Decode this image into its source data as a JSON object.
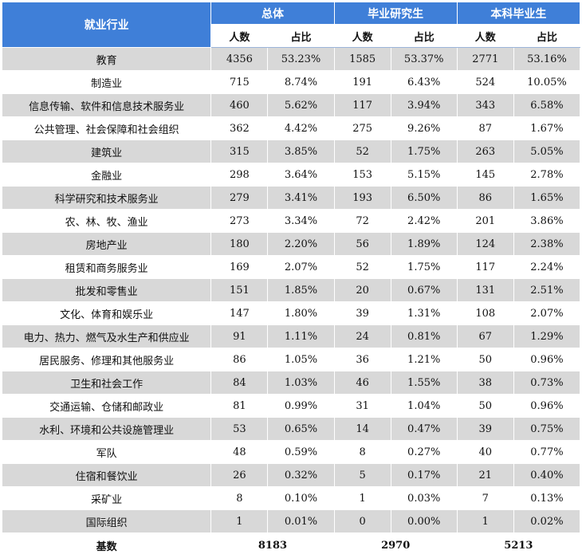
{
  "header": {
    "industry": "就业行业",
    "groups": [
      "总体",
      "毕业研究生",
      "本科毕业生"
    ],
    "count_label": "人数",
    "ratio_label": "占比"
  },
  "rows": [
    {
      "industry": "教育",
      "total_n": "4356",
      "total_p": "53.23%",
      "grad_n": "1585",
      "grad_p": "53.37%",
      "ug_n": "2771",
      "ug_p": "53.16%"
    },
    {
      "industry": "制造业",
      "total_n": "715",
      "total_p": "8.74%",
      "grad_n": "191",
      "grad_p": "6.43%",
      "ug_n": "524",
      "ug_p": "10.05%"
    },
    {
      "industry": "信息传输、软件和信息技术服务业",
      "total_n": "460",
      "total_p": "5.62%",
      "grad_n": "117",
      "grad_p": "3.94%",
      "ug_n": "343",
      "ug_p": "6.58%"
    },
    {
      "industry": "公共管理、社会保障和社会组织",
      "total_n": "362",
      "total_p": "4.42%",
      "grad_n": "275",
      "grad_p": "9.26%",
      "ug_n": "87",
      "ug_p": "1.67%"
    },
    {
      "industry": "建筑业",
      "total_n": "315",
      "total_p": "3.85%",
      "grad_n": "52",
      "grad_p": "1.75%",
      "ug_n": "263",
      "ug_p": "5.05%"
    },
    {
      "industry": "金融业",
      "total_n": "298",
      "total_p": "3.64%",
      "grad_n": "153",
      "grad_p": "5.15%",
      "ug_n": "145",
      "ug_p": "2.78%"
    },
    {
      "industry": "科学研究和技术服务业",
      "total_n": "279",
      "total_p": "3.41%",
      "grad_n": "193",
      "grad_p": "6.50%",
      "ug_n": "86",
      "ug_p": "1.65%"
    },
    {
      "industry": "农、林、牧、渔业",
      "total_n": "273",
      "total_p": "3.34%",
      "grad_n": "72",
      "grad_p": "2.42%",
      "ug_n": "201",
      "ug_p": "3.86%"
    },
    {
      "industry": "房地产业",
      "total_n": "180",
      "total_p": "2.20%",
      "grad_n": "56",
      "grad_p": "1.89%",
      "ug_n": "124",
      "ug_p": "2.38%"
    },
    {
      "industry": "租赁和商务服务业",
      "total_n": "169",
      "total_p": "2.07%",
      "grad_n": "52",
      "grad_p": "1.75%",
      "ug_n": "117",
      "ug_p": "2.24%"
    },
    {
      "industry": "批发和零售业",
      "total_n": "151",
      "total_p": "1.85%",
      "grad_n": "20",
      "grad_p": "0.67%",
      "ug_n": "131",
      "ug_p": "2.51%"
    },
    {
      "industry": "文化、体育和娱乐业",
      "total_n": "147",
      "total_p": "1.80%",
      "grad_n": "39",
      "grad_p": "1.31%",
      "ug_n": "108",
      "ug_p": "2.07%"
    },
    {
      "industry": "电力、热力、燃气及水生产和供应业",
      "total_n": "91",
      "total_p": "1.11%",
      "grad_n": "24",
      "grad_p": "0.81%",
      "ug_n": "67",
      "ug_p": "1.29%"
    },
    {
      "industry": "居民服务、修理和其他服务业",
      "total_n": "86",
      "total_p": "1.05%",
      "grad_n": "36",
      "grad_p": "1.21%",
      "ug_n": "50",
      "ug_p": "0.96%"
    },
    {
      "industry": "卫生和社会工作",
      "total_n": "84",
      "total_p": "1.03%",
      "grad_n": "46",
      "grad_p": "1.55%",
      "ug_n": "38",
      "ug_p": "0.73%"
    },
    {
      "industry": "交通运输、仓储和邮政业",
      "total_n": "81",
      "total_p": "0.99%",
      "grad_n": "31",
      "grad_p": "1.04%",
      "ug_n": "50",
      "ug_p": "0.96%"
    },
    {
      "industry": "水利、环境和公共设施管理业",
      "total_n": "53",
      "total_p": "0.65%",
      "grad_n": "14",
      "grad_p": "0.47%",
      "ug_n": "39",
      "ug_p": "0.75%"
    },
    {
      "industry": "军队",
      "total_n": "48",
      "total_p": "0.59%",
      "grad_n": "8",
      "grad_p": "0.27%",
      "ug_n": "40",
      "ug_p": "0.77%"
    },
    {
      "industry": "住宿和餐饮业",
      "total_n": "26",
      "total_p": "0.32%",
      "grad_n": "5",
      "grad_p": "0.17%",
      "ug_n": "21",
      "ug_p": "0.40%"
    },
    {
      "industry": "采矿业",
      "total_n": "8",
      "total_p": "0.10%",
      "grad_n": "1",
      "grad_p": "0.03%",
      "ug_n": "7",
      "ug_p": "0.13%"
    },
    {
      "industry": "国际组织",
      "total_n": "1",
      "total_p": "0.01%",
      "grad_n": "0",
      "grad_p": "0.00%",
      "ug_n": "1",
      "ug_p": "0.02%"
    }
  ],
  "base": {
    "label": "基数",
    "total": "8183",
    "grad": "2970",
    "ug": "5213"
  },
  "colors": {
    "header_blue": "#3f7fd8",
    "stripe_gray": "#d8d8d8"
  }
}
